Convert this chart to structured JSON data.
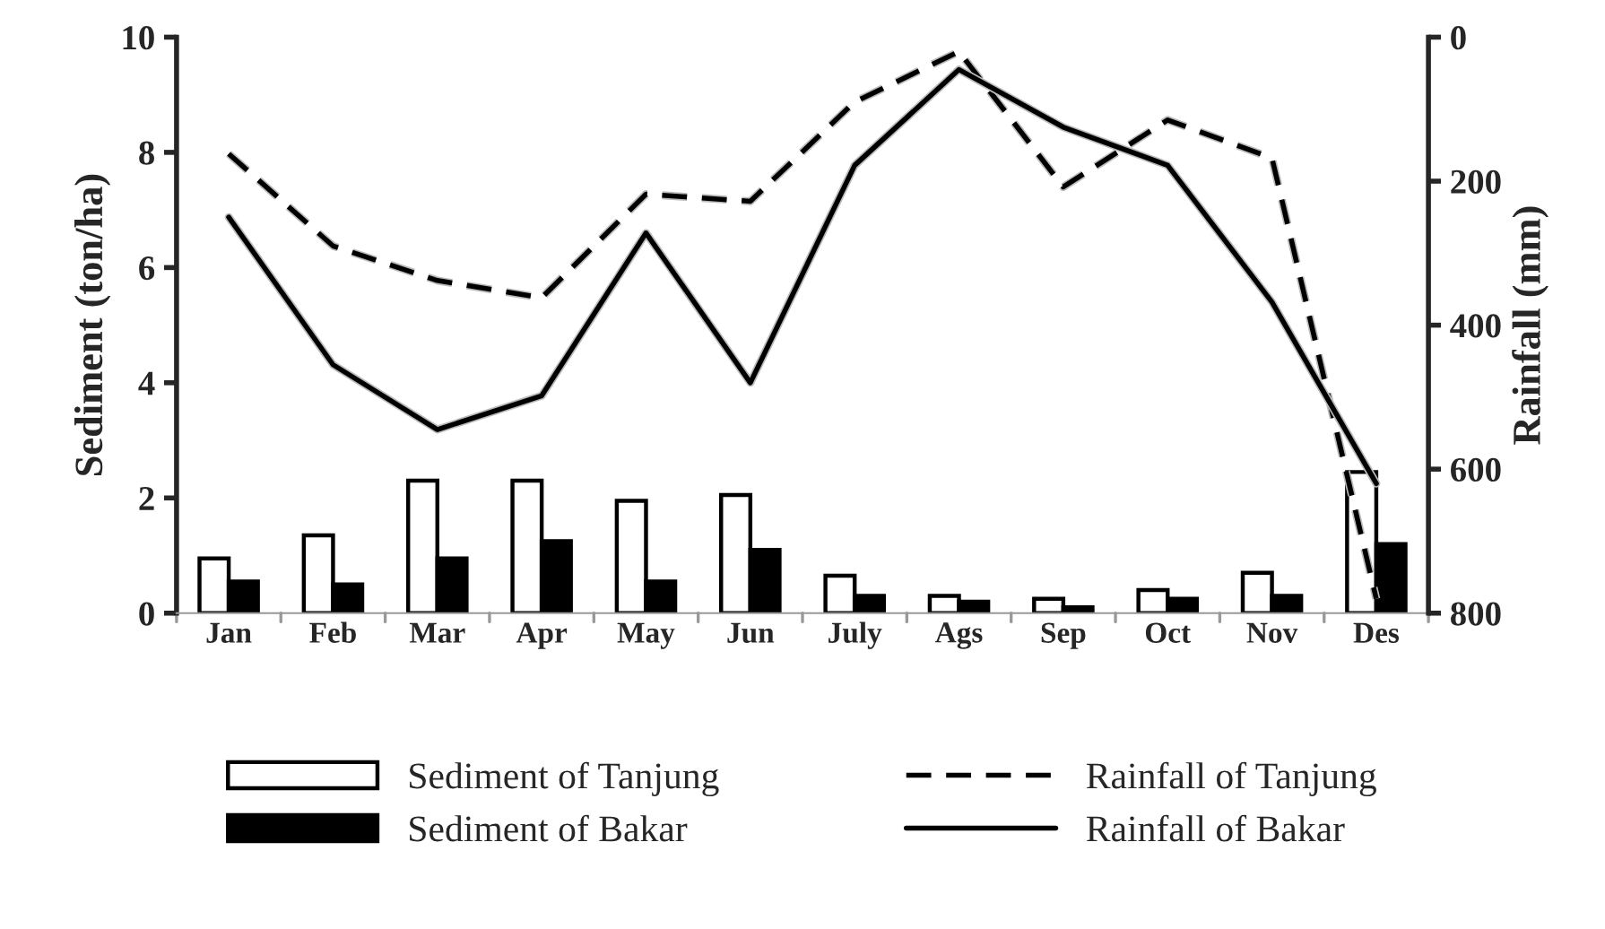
{
  "chart_data": {
    "type": "bar",
    "categories": [
      "Jan",
      "Feb",
      "Mar",
      "Apr",
      "May",
      "Jun",
      "July",
      "Ags",
      "Sep",
      "Oct",
      "Nov",
      "Des"
    ],
    "ylabel": "Sediment (ton/ha)",
    "y2label": "Rainfall (mm)",
    "ylim": [
      0,
      10
    ],
    "yticks": [
      0,
      2,
      4,
      6,
      8,
      10
    ],
    "y2lim": [
      800,
      0
    ],
    "y2ticks": [
      0,
      200,
      400,
      600,
      800
    ],
    "series": [
      {
        "name": "Sediment of Tanjung",
        "color": "#ffffff",
        "values": [
          0.95,
          1.35,
          2.3,
          2.3,
          1.95,
          2.05,
          0.65,
          0.3,
          0.25,
          0.4,
          0.7,
          2.45
        ]
      },
      {
        "name": "Sediment of Bakar",
        "color": "#000000",
        "values": [
          0.55,
          0.5,
          0.95,
          1.25,
          0.55,
          1.1,
          0.3,
          0.2,
          0.1,
          0.25,
          0.3,
          1.2
        ]
      },
      {
        "name": "Rainfall of Tanjung",
        "type": "line",
        "axis": "y2",
        "color": "#000000",
        "line_style": "dashed",
        "values": [
          162,
          290,
          338,
          362,
          218,
          228,
          90,
          20,
          208,
          115,
          168,
          780
        ]
      },
      {
        "name": "Rainfall of Bakar",
        "type": "line",
        "axis": "y2",
        "color": "#000000",
        "line_style": "solid",
        "values": [
          250,
          455,
          545,
          498,
          272,
          480,
          178,
          45,
          125,
          178,
          368,
          620
        ]
      }
    ],
    "legend": "bottom",
    "grid": false
  }
}
